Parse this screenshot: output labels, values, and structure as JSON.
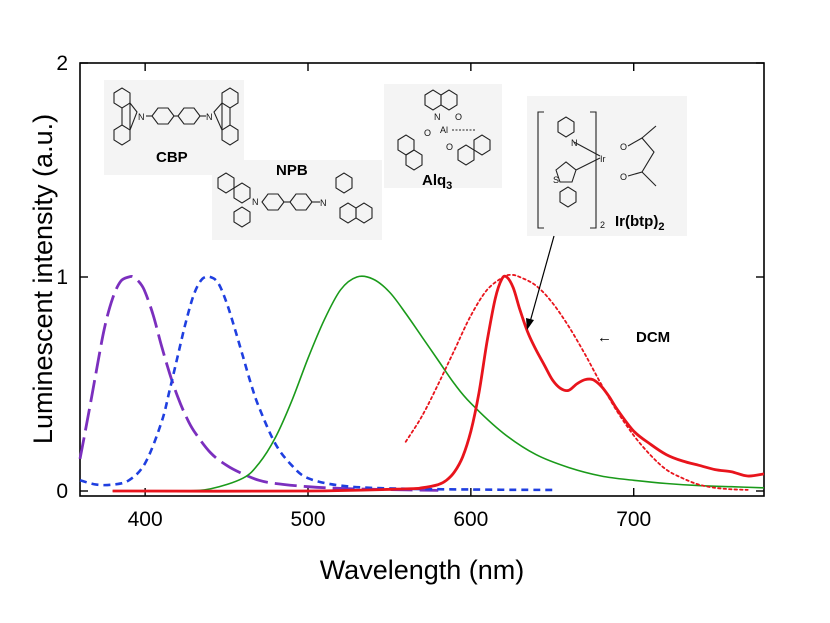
{
  "chart_data": {
    "type": "line",
    "title": "",
    "xlabel": "Wavelength (nm)",
    "ylabel": "Luminescent intensity (a.u.)",
    "xlim": [
      360,
      780
    ],
    "ylim": [
      0,
      2
    ],
    "xticks": [
      400,
      500,
      600,
      700
    ],
    "yticks": [
      0,
      1,
      2
    ],
    "x_tick_labels": [
      "400",
      "500",
      "600",
      "700"
    ],
    "y_tick_labels": [
      "0",
      "1",
      "2"
    ],
    "grid": false,
    "series": [
      {
        "name": "CBP",
        "color": "#7b2fbe",
        "dash": "long-dash",
        "x": [
          360,
          365,
          370,
          375,
          380,
          385,
          390,
          393,
          397,
          400,
          405,
          410,
          415,
          420,
          425,
          430,
          440,
          450,
          460,
          470,
          480,
          500,
          520,
          540,
          560,
          580
        ],
        "y": [
          0.15,
          0.35,
          0.56,
          0.76,
          0.9,
          0.98,
          1.0,
          1.0,
          0.97,
          0.93,
          0.82,
          0.68,
          0.55,
          0.44,
          0.35,
          0.28,
          0.18,
          0.12,
          0.08,
          0.05,
          0.035,
          0.02,
          0.012,
          0.008,
          0.005,
          0.003
        ]
      },
      {
        "name": "NPB",
        "color": "#1f3fe0",
        "dash": "short-dash",
        "x": [
          360,
          370,
          380,
          390,
          400,
          410,
          415,
          420,
          425,
          430,
          435,
          440,
          445,
          450,
          455,
          460,
          465,
          470,
          480,
          490,
          500,
          520,
          550,
          600,
          650
        ],
        "y": [
          0.05,
          0.03,
          0.03,
          0.05,
          0.13,
          0.32,
          0.47,
          0.63,
          0.79,
          0.92,
          0.99,
          1.0,
          0.97,
          0.88,
          0.76,
          0.63,
          0.5,
          0.39,
          0.22,
          0.12,
          0.06,
          0.025,
          0.012,
          0.007,
          0.005
        ]
      },
      {
        "name": "Alq3",
        "color": "#1a9a1a",
        "dash": "solid",
        "x": [
          380,
          420,
          440,
          460,
          470,
          480,
          490,
          500,
          510,
          520,
          530,
          540,
          550,
          560,
          570,
          580,
          590,
          600,
          620,
          640,
          660,
          680,
          700,
          720,
          740,
          760,
          780
        ],
        "y": [
          0.0,
          0.0,
          0.01,
          0.06,
          0.13,
          0.25,
          0.42,
          0.62,
          0.8,
          0.94,
          1.0,
          0.99,
          0.93,
          0.83,
          0.72,
          0.61,
          0.5,
          0.41,
          0.27,
          0.17,
          0.11,
          0.07,
          0.05,
          0.035,
          0.025,
          0.02,
          0.015
        ]
      },
      {
        "name": "Ir(btp)2",
        "color": "#e8141c",
        "dash": "solid",
        "x": [
          380,
          500,
          560,
          570,
          580,
          585,
          590,
          595,
          600,
          605,
          610,
          615,
          619,
          622,
          626,
          630,
          635,
          640,
          645,
          650,
          655,
          660,
          665,
          670,
          675,
          680,
          685,
          690,
          700,
          710,
          720,
          730,
          740,
          750,
          760,
          770,
          780
        ],
        "y": [
          0.0,
          0.0,
          0.01,
          0.015,
          0.03,
          0.05,
          0.09,
          0.16,
          0.28,
          0.46,
          0.7,
          0.9,
          0.99,
          1.0,
          0.95,
          0.85,
          0.74,
          0.66,
          0.59,
          0.52,
          0.48,
          0.47,
          0.5,
          0.52,
          0.52,
          0.49,
          0.44,
          0.38,
          0.28,
          0.22,
          0.17,
          0.14,
          0.12,
          0.1,
          0.09,
          0.07,
          0.08
        ]
      },
      {
        "name": "DCM",
        "color": "#e8141c",
        "dash": "dotted",
        "x": [
          560,
          570,
          580,
          590,
          600,
          610,
          620,
          625,
          630,
          640,
          650,
          660,
          670,
          680,
          690,
          700,
          710,
          720,
          730,
          740,
          750,
          760,
          770
        ],
        "y": [
          0.23,
          0.35,
          0.5,
          0.66,
          0.82,
          0.94,
          1.0,
          1.01,
          1.0,
          0.96,
          0.88,
          0.77,
          0.64,
          0.5,
          0.37,
          0.26,
          0.17,
          0.1,
          0.06,
          0.03,
          0.015,
          0.008,
          0.005
        ]
      }
    ],
    "annotations": {
      "cbp": "CBP",
      "npb": "NPB",
      "alq": "Alq",
      "alq_sub": "3",
      "ir": "Ir(btp)",
      "ir_sub": "2",
      "ir_bracket_sub": "2",
      "dcm": "DCM",
      "dcm_arrow": "←"
    }
  }
}
